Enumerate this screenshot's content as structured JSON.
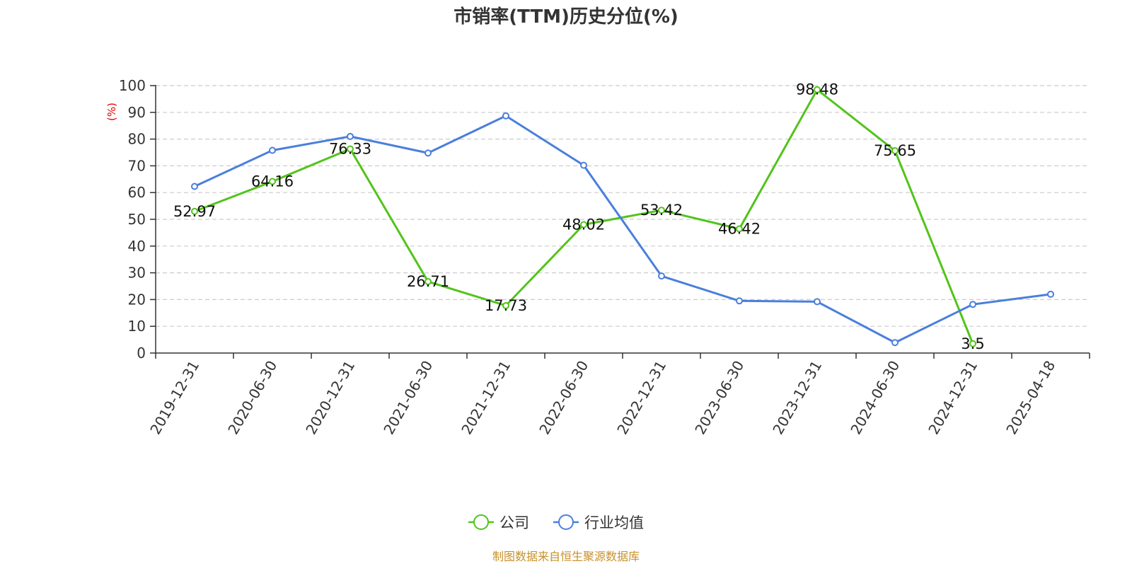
{
  "chart_data": {
    "type": "line",
    "title": "市销率(TTM)历史分位(%)",
    "xlabel": "",
    "ylabel": "(%)",
    "ylim": [
      0,
      100
    ],
    "yticks": [
      0,
      10,
      20,
      30,
      40,
      50,
      60,
      70,
      80,
      90,
      100
    ],
    "grid": true,
    "legend_position": "bottom-center",
    "categories": [
      "2019-12-31",
      "2020-06-30",
      "2020-12-31",
      "2021-06-30",
      "2021-12-31",
      "2022-06-30",
      "2022-12-31",
      "2023-06-30",
      "2023-12-31",
      "2024-06-30",
      "2024-12-31",
      "2025-04-18"
    ],
    "series": [
      {
        "name": "公司",
        "color": "#52c41a",
        "values": [
          52.97,
          64.16,
          76.33,
          26.71,
          17.73,
          48.02,
          53.42,
          46.42,
          98.48,
          75.65,
          3.5,
          null
        ],
        "labels": [
          "52.97",
          "64.16",
          "76.33",
          "26.71",
          "17.73",
          "48.02",
          "53.42",
          "46.42",
          "98.48",
          "75.65",
          "3.5",
          null
        ]
      },
      {
        "name": "行业均值",
        "color": "#4a7fdc",
        "values": [
          62.3,
          75.8,
          81.0,
          74.8,
          88.7,
          70.2,
          28.8,
          19.5,
          19.2,
          3.9,
          18.2,
          22.0
        ]
      }
    ],
    "ylabel_color": "#e60000",
    "source": "制图数据来自恒生聚源数据库",
    "source_color": "#c8902a"
  }
}
